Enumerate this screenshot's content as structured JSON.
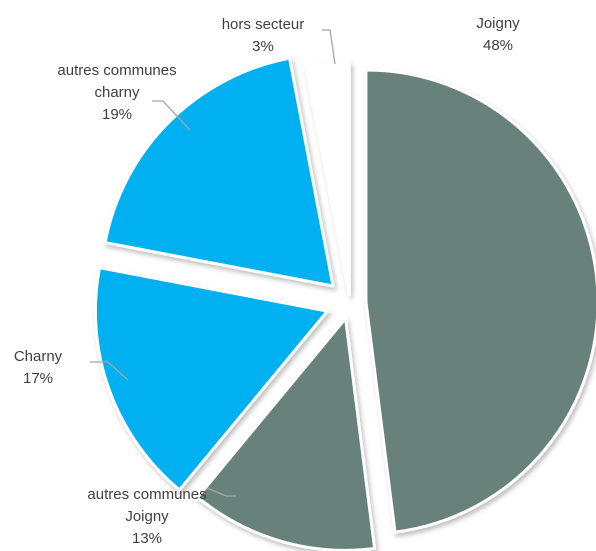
{
  "chart_data": {
    "type": "pie",
    "title": "",
    "slices": [
      {
        "label_lines": [
          "Joigny"
        ],
        "percent_label": "48%",
        "value": 48,
        "color": "#67817a"
      },
      {
        "label_lines": [
          "autres communes",
          "Joigny"
        ],
        "percent_label": "13%",
        "value": 13,
        "color": "#67817a"
      },
      {
        "label_lines": [
          "Charny"
        ],
        "percent_label": "17%",
        "value": 17,
        "color": "#00b0f0"
      },
      {
        "label_lines": [
          "autres communes",
          "charny"
        ],
        "percent_label": "19%",
        "value": 19,
        "color": "#00b0f0"
      },
      {
        "label_lines": [
          "hors secteur"
        ],
        "percent_label": "3%",
        "value": 3,
        "color": "#ffffff"
      }
    ]
  }
}
